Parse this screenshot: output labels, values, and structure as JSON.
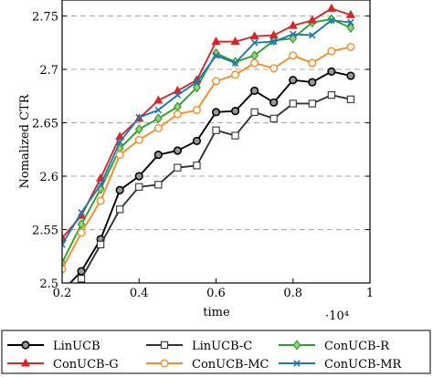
{
  "chart_data": {
    "type": "line",
    "title": "",
    "xlabel": "time",
    "ylabel": "Nomalized CTR",
    "x_multiplier_label": "·10⁴",
    "xlim": [
      0.2,
      1.0
    ],
    "ylim": [
      2.5,
      2.765
    ],
    "x_ticks": [
      "0.2",
      "0.4",
      "0.6",
      "0.8",
      "1"
    ],
    "y_ticks": [
      "2.5",
      "2.55",
      "2.6",
      "2.65",
      "2.7",
      "2.75"
    ],
    "grid": "horizontal dashed",
    "legend_position": "bottom",
    "x": [
      0.2,
      0.25,
      0.3,
      0.35,
      0.4,
      0.45,
      0.5,
      0.55,
      0.6,
      0.65,
      0.7,
      0.75,
      0.8,
      0.85,
      0.9,
      0.95
    ],
    "series": [
      {
        "name": "LinUCB",
        "color": "#000000",
        "marker": "circle",
        "values": [
          2.492,
          2.511,
          2.541,
          2.587,
          2.6,
          2.62,
          2.624,
          2.633,
          2.66,
          2.661,
          2.68,
          2.669,
          2.69,
          2.688,
          2.698,
          2.694
        ]
      },
      {
        "name": "LinUCB-C",
        "color": "#333333",
        "marker": "square",
        "values": [
          2.478,
          2.504,
          2.536,
          2.569,
          2.59,
          2.592,
          2.608,
          2.61,
          2.643,
          2.638,
          2.66,
          2.654,
          2.668,
          2.668,
          2.676,
          2.672
        ]
      },
      {
        "name": "ConUCB-R",
        "color": "#2ca02c",
        "marker": "diamond",
        "values": [
          2.519,
          2.555,
          2.588,
          2.626,
          2.644,
          2.654,
          2.665,
          2.683,
          2.715,
          2.707,
          2.713,
          2.727,
          2.729,
          2.744,
          2.747,
          2.739
        ]
      },
      {
        "name": "ConUCB-G",
        "color": "#d62728",
        "marker": "triangle",
        "values": [
          2.542,
          2.563,
          2.598,
          2.637,
          2.654,
          2.671,
          2.68,
          2.69,
          2.726,
          2.726,
          2.731,
          2.732,
          2.741,
          2.746,
          2.757,
          2.751
        ]
      },
      {
        "name": "ConUCB-MC",
        "color": "#f28e2b",
        "marker": "circle-open",
        "values": [
          2.513,
          2.547,
          2.577,
          2.62,
          2.634,
          2.645,
          2.658,
          2.662,
          2.689,
          2.695,
          2.706,
          2.701,
          2.713,
          2.706,
          2.717,
          2.721
        ]
      },
      {
        "name": "ConUCB-MR",
        "color": "#1f77b4",
        "marker": "x",
        "values": [
          2.536,
          2.566,
          2.592,
          2.632,
          2.655,
          2.662,
          2.676,
          2.688,
          2.713,
          2.706,
          2.725,
          2.726,
          2.733,
          2.732,
          2.746,
          2.744
        ]
      }
    ]
  }
}
